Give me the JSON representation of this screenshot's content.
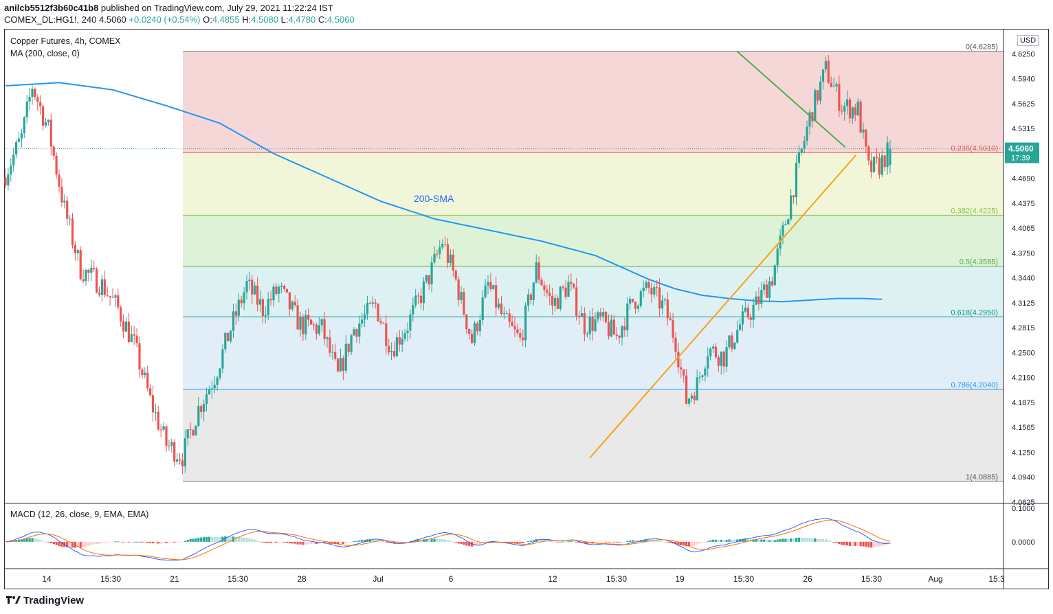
{
  "header": {
    "publisher": "anilcb5512f3b60c41b8",
    "published_text": " published on TradingView.com, July 29, 2021 11:22:24 IST",
    "symbol": "COMEX_DL:HG1!, 240",
    "last": "4.5060",
    "change": "+0.0240 (+0.54%)",
    "o_label": "O:",
    "o": "4.4855",
    "h_label": "H:",
    "h": "4.5080",
    "l_label": "L:",
    "l": "4.4780",
    "c_label": "C:",
    "c": "4.5060"
  },
  "main_pane": {
    "title": "Copper Futures, 4h, COMEX",
    "ma_label": "MA (200, close, 0)",
    "currency": "USD",
    "annotation": "200-SMA"
  },
  "macd_pane": {
    "title": "MACD (12, 26, close, 9, EMA, EMA)"
  },
  "footer": {
    "brand": "TradingView"
  },
  "colors": {
    "up": "#26a69a",
    "down": "#ef5350",
    "sma": "#2196f3",
    "macd": "#2962ff",
    "signal": "#ff6d00",
    "resistance_line": "#4caf50",
    "support_line": "#f7a21b"
  },
  "chart_data": [
    {
      "type": "candlestick",
      "title": "Copper Futures, 4h, COMEX",
      "x_tick_labels": [
        "14",
        "15:30",
        "21",
        "15:30",
        "28",
        "Jul",
        "6",
        "12",
        "15:30",
        "19",
        "15:30",
        "26",
        "15:30",
        "Aug",
        "15:3"
      ],
      "y_tick_labels": [
        "4.6250",
        "4.5940",
        "4.5625",
        "4.5315",
        "4.4690",
        "4.4375",
        "4.4065",
        "4.3750",
        "4.3440",
        "4.3125",
        "4.2815",
        "4.2500",
        "4.2190",
        "4.1875",
        "4.1565",
        "4.1250",
        "4.0940",
        "4.0625"
      ],
      "ylim": [
        4.0625,
        4.6565
      ],
      "last_price_label": {
        "price": "4.5060",
        "countdown": "17:39"
      },
      "fibonacci": [
        {
          "label": "0(4.6285)",
          "level": 4.6285
        },
        {
          "label": "0.236(4.5010)",
          "level": 4.501
        },
        {
          "label": "0.382(4.4225)",
          "level": 4.4225
        },
        {
          "label": "0.5(4.3585)",
          "level": 4.3585
        },
        {
          "label": "0.618(4.2950)",
          "level": 4.295
        },
        {
          "label": "0.786(4.2040)",
          "level": 4.204
        },
        {
          "label": "1(4.0885)",
          "level": 4.0885
        }
      ],
      "fib_zone_colors": [
        "#f5d0d0",
        "#eef4d2",
        "#d8f0d0",
        "#d8eef0",
        "#ddebf6",
        "#e5e5e5"
      ],
      "fib_line_colors": [
        "#787b86",
        "#ef5350",
        "#8bc34a",
        "#4caf50",
        "#009688",
        "#2196f3",
        "#787b86"
      ],
      "close_waypoints": [
        [
          0,
          4.475
        ],
        [
          6,
          4.52
        ],
        [
          10,
          4.585
        ],
        [
          16,
          4.53
        ],
        [
          22,
          4.43
        ],
        [
          28,
          4.355
        ],
        [
          36,
          4.335
        ],
        [
          42,
          4.305
        ],
        [
          48,
          4.26
        ],
        [
          54,
          4.19
        ],
        [
          60,
          4.135
        ],
        [
          66,
          4.12
        ],
        [
          72,
          4.18
        ],
        [
          78,
          4.22
        ],
        [
          84,
          4.28
        ],
        [
          90,
          4.335
        ],
        [
          96,
          4.305
        ],
        [
          102,
          4.33
        ],
        [
          110,
          4.285
        ],
        [
          118,
          4.28
        ],
        [
          124,
          4.22
        ],
        [
          130,
          4.28
        ],
        [
          138,
          4.31
        ],
        [
          144,
          4.255
        ],
        [
          150,
          4.285
        ],
        [
          158,
          4.345
        ],
        [
          163,
          4.39
        ],
        [
          168,
          4.34
        ],
        [
          174,
          4.265
        ],
        [
          180,
          4.335
        ],
        [
          186,
          4.29
        ],
        [
          192,
          4.265
        ],
        [
          198,
          4.355
        ],
        [
          204,
          4.31
        ],
        [
          210,
          4.335
        ],
        [
          216,
          4.285
        ],
        [
          222,
          4.29
        ],
        [
          228,
          4.27
        ],
        [
          234,
          4.315
        ],
        [
          240,
          4.33
        ],
        [
          246,
          4.305
        ],
        [
          250,
          4.265
        ],
        [
          254,
          4.19
        ],
        [
          258,
          4.21
        ],
        [
          262,
          4.255
        ],
        [
          268,
          4.245
        ],
        [
          274,
          4.285
        ],
        [
          280,
          4.31
        ],
        [
          286,
          4.345
        ],
        [
          290,
          4.4
        ],
        [
          294,
          4.46
        ],
        [
          300,
          4.545
        ],
        [
          306,
          4.605
        ],
        [
          312,
          4.56
        ],
        [
          318,
          4.555
        ],
        [
          322,
          4.48
        ],
        [
          326,
          4.485
        ],
        [
          330,
          4.506
        ]
      ],
      "bars_total": 330,
      "series": [
        {
          "name": "MA (200, close, 0)",
          "values_waypoints": [
            [
              0,
              4.585
            ],
            [
              20,
              4.589
            ],
            [
              40,
              4.58
            ],
            [
              60,
              4.56
            ],
            [
              80,
              4.538
            ],
            [
              100,
              4.5
            ],
            [
              120,
              4.47
            ],
            [
              140,
              4.44
            ],
            [
              160,
              4.418
            ],
            [
              180,
              4.404
            ],
            [
              200,
              4.39
            ],
            [
              220,
              4.372
            ],
            [
              240,
              4.342
            ],
            [
              250,
              4.33
            ],
            [
              260,
              4.322
            ],
            [
              270,
              4.318
            ],
            [
              280,
              4.315
            ],
            [
              290,
              4.314
            ],
            [
              300,
              4.316
            ],
            [
              310,
              4.318
            ],
            [
              320,
              4.318
            ],
            [
              327,
              4.317
            ]
          ]
        }
      ],
      "trendlines": [
        {
          "name": "resistance",
          "from": [
            273,
            4.628
          ],
          "to": [
            303,
            4.508
          ]
        },
        {
          "name": "support",
          "from": [
            218,
            4.118
          ],
          "to": [
            307,
            4.498
          ]
        }
      ]
    },
    {
      "type": "macd",
      "title": "MACD (12, 26, close, 9, EMA, EMA)",
      "y_tick_labels": [
        "0.1000",
        "0.0000"
      ],
      "ylim": [
        -0.08,
        0.11
      ]
    }
  ]
}
